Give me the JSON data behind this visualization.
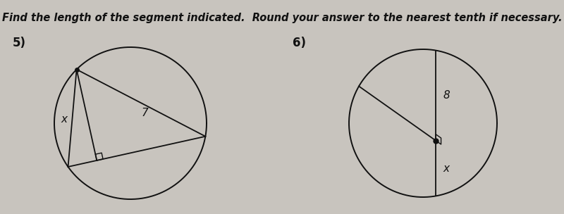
{
  "title": "Find the length of the segment indicated.  Round your answer to the nearest tenth if necessary.",
  "title_fontsize": 10.5,
  "title_fontstyle": "italic",
  "title_fontweight": "bold",
  "bg_color": "#c8c4be",
  "label5": "5)",
  "label6": "6)",
  "label_x5": "x",
  "label_7": "7",
  "label_x6": "x",
  "label_8": "8",
  "line_color": "#111111",
  "text_color": "#111111"
}
